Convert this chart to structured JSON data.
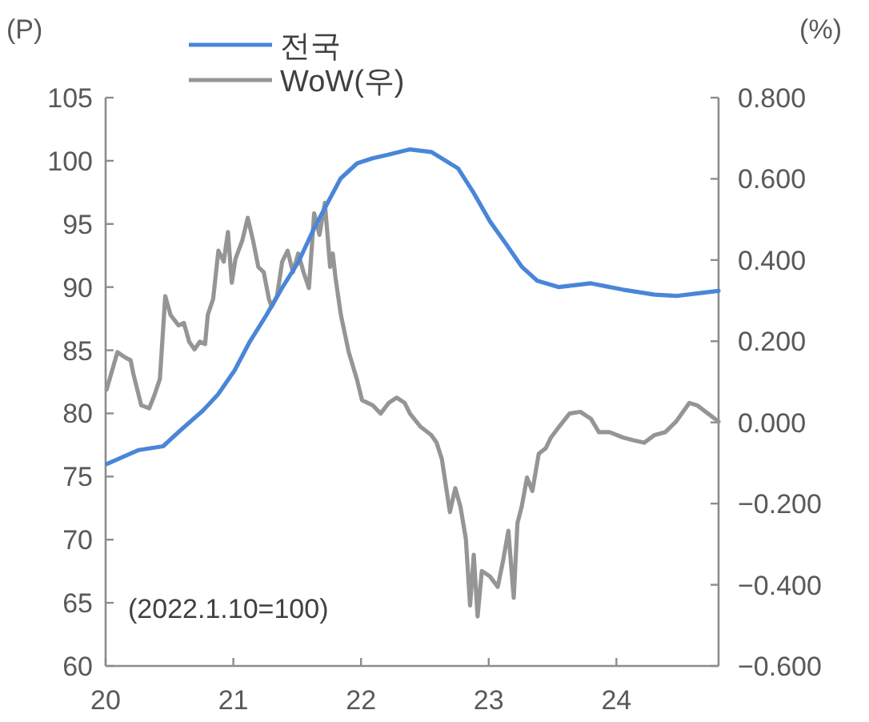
{
  "chart_data": {
    "type": "line",
    "ylabel": "(P)",
    "y2label": "(%)",
    "legend": "top",
    "xlim": [
      2020,
      2024.8
    ],
    "xticks": [
      {
        "value": 2020,
        "label": "20"
      },
      {
        "value": 2021,
        "label": "21"
      },
      {
        "value": 2022,
        "label": "22"
      },
      {
        "value": 2023,
        "label": "23"
      },
      {
        "value": 2024,
        "label": "24"
      }
    ],
    "ylim": [
      60,
      105
    ],
    "yticks": [
      60,
      65,
      70,
      75,
      80,
      85,
      90,
      95,
      100,
      105
    ],
    "y2lim": [
      -0.6,
      0.8
    ],
    "y2ticks": [
      {
        "value": -0.6,
        "label": "−0.600"
      },
      {
        "value": -0.4,
        "label": "−0.400"
      },
      {
        "value": -0.2,
        "label": "−0.200"
      },
      {
        "value": 0,
        "label": "0.000"
      },
      {
        "value": 0.2,
        "label": "0.200"
      },
      {
        "value": 0.4,
        "label": "0.400"
      },
      {
        "value": 0.6,
        "label": "0.600"
      },
      {
        "value": 0.8,
        "label": "0.800"
      }
    ],
    "annotations": [
      "(2022.1.10=100)"
    ],
    "series": [
      {
        "name": "전국",
        "color": "#4a86d8",
        "x": [
          2020.01,
          2020.26,
          2020.45,
          2020.59,
          2020.76,
          2020.88,
          2021.01,
          2021.13,
          2021.26,
          2021.38,
          2021.51,
          2021.63,
          2021.74,
          2021.84,
          2021.97,
          2022.09,
          2022.22,
          2022.38,
          2022.55,
          2022.76,
          2022.88,
          2023.01,
          2023.13,
          2023.26,
          2023.38,
          2023.55,
          2023.8,
          2024.05,
          2024.3,
          2024.47,
          2024.63,
          2024.8
        ],
        "values": [
          76.0,
          77.1,
          77.4,
          78.7,
          80.2,
          81.5,
          83.4,
          85.7,
          87.8,
          89.9,
          92.0,
          94.6,
          96.7,
          98.6,
          99.8,
          100.2,
          100.5,
          100.9,
          100.7,
          99.4,
          97.5,
          95.2,
          93.5,
          91.6,
          90.5,
          90.0,
          90.3,
          89.8,
          89.4,
          89.3,
          89.5,
          89.7
        ]
      },
      {
        "name": "WoW(우)",
        "color": "#959595",
        "axis": "y2",
        "x": [
          2020.008,
          2020.092,
          2020.154,
          2020.196,
          2020.217,
          2020.279,
          2020.342,
          2020.383,
          2020.425,
          2020.467,
          2020.508,
          2020.571,
          2020.613,
          2020.654,
          2020.696,
          2020.738,
          2020.779,
          2020.8,
          2020.842,
          2020.883,
          2020.925,
          2020.958,
          2020.988,
          2021.017,
          2021.071,
          2021.113,
          2021.154,
          2021.196,
          2021.238,
          2021.279,
          2021.3,
          2021.342,
          2021.383,
          2021.425,
          2021.467,
          2021.508,
          2021.55,
          2021.592,
          2021.633,
          2021.675,
          2021.717,
          2021.758,
          2021.779,
          2021.8,
          2021.842,
          2021.904,
          2021.967,
          2022.008,
          2022.092,
          2022.154,
          2022.217,
          2022.279,
          2022.342,
          2022.383,
          2022.467,
          2022.55,
          2022.592,
          2022.633,
          2022.696,
          2022.738,
          2022.779,
          2022.821,
          2022.854,
          2022.883,
          2022.913,
          2022.946,
          2023.008,
          2023.071,
          2023.113,
          2023.154,
          2023.196,
          2023.225,
          2023.258,
          2023.3,
          2023.342,
          2023.392,
          2023.446,
          2023.488,
          2023.55,
          2023.633,
          2023.717,
          2023.8,
          2023.863,
          2023.946,
          2024.05,
          2024.133,
          2024.217,
          2024.3,
          2024.383,
          2024.467,
          2024.571,
          2024.633,
          2024.717,
          2024.8
        ],
        "values": [
          0.081,
          0.173,
          0.16,
          0.153,
          0.12,
          0.042,
          0.035,
          0.068,
          0.107,
          0.311,
          0.265,
          0.239,
          0.245,
          0.199,
          0.18,
          0.199,
          0.193,
          0.265,
          0.304,
          0.423,
          0.396,
          0.469,
          0.344,
          0.403,
          0.449,
          0.504,
          0.449,
          0.383,
          0.37,
          0.304,
          0.285,
          0.311,
          0.396,
          0.423,
          0.37,
          0.416,
          0.37,
          0.331,
          0.515,
          0.462,
          0.541,
          0.383,
          0.416,
          0.357,
          0.265,
          0.173,
          0.107,
          0.055,
          0.042,
          0.022,
          0.048,
          0.061,
          0.048,
          0.022,
          -0.011,
          -0.031,
          -0.05,
          -0.09,
          -0.221,
          -0.162,
          -0.208,
          -0.287,
          -0.451,
          -0.326,
          -0.478,
          -0.366,
          -0.379,
          -0.405,
          -0.34,
          -0.267,
          -0.432,
          -0.248,
          -0.208,
          -0.136,
          -0.169,
          -0.077,
          -0.064,
          -0.037,
          -0.011,
          0.022,
          0.026,
          0.009,
          -0.024,
          -0.024,
          -0.037,
          -0.044,
          -0.05,
          -0.031,
          -0.024,
          0.002,
          0.048,
          0.042,
          0.022,
          0.002
        ]
      }
    ]
  }
}
